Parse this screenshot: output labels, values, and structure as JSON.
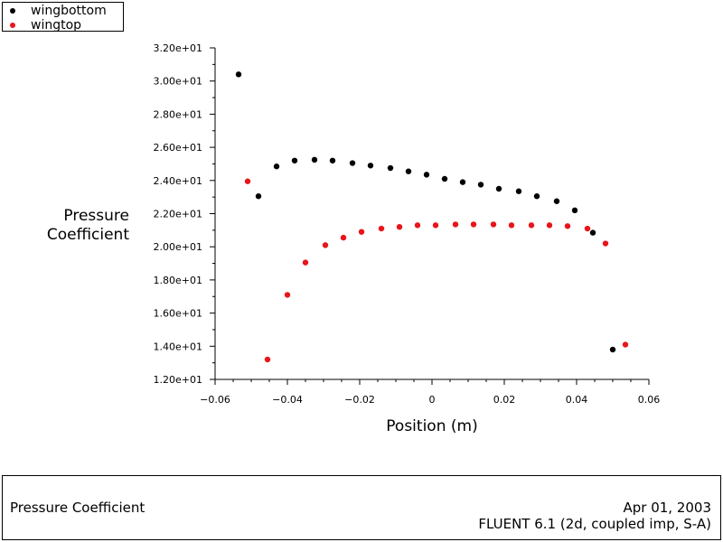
{
  "chart_data": {
    "type": "scatter",
    "xlabel": "Position (m)",
    "ylabel_lines": [
      "Pressure",
      "Coefficient"
    ],
    "xlim": [
      -0.06,
      0.06
    ],
    "ylim": [
      12.0,
      32.0
    ],
    "x_ticks": [
      -0.06,
      -0.04,
      -0.02,
      0,
      0.02,
      0.04,
      0.06
    ],
    "x_tick_labels": [
      "-0.06",
      "-0.04",
      "-0.02",
      "0",
      "0.02",
      "0.04",
      "0.06"
    ],
    "y_ticks": [
      12,
      14,
      16,
      18,
      20,
      22,
      24,
      26,
      28,
      30,
      32
    ],
    "y_tick_labels": [
      "1.20e+01",
      "1.40e+01",
      "1.60e+01",
      "1.80e+01",
      "2.00e+01",
      "2.20e+01",
      "2.40e+01",
      "2.60e+01",
      "2.80e+01",
      "3.00e+01",
      "3.20e+01"
    ],
    "grid": false,
    "legend_position": "top-left",
    "series": [
      {
        "name": "wingbottom",
        "color": "#000000",
        "x": [
          -0.0535,
          -0.048,
          -0.043,
          -0.038,
          -0.0325,
          -0.0275,
          -0.022,
          -0.017,
          -0.0115,
          -0.0065,
          -0.0015,
          0.0035,
          0.0085,
          0.0135,
          0.0185,
          0.024,
          0.029,
          0.0345,
          0.0395,
          0.0445,
          0.05
        ],
        "y": [
          30.4,
          23.05,
          24.85,
          25.2,
          25.25,
          25.2,
          25.05,
          24.9,
          24.75,
          24.55,
          24.35,
          24.1,
          23.9,
          23.75,
          23.5,
          23.35,
          23.05,
          22.75,
          22.2,
          20.85,
          13.8
        ]
      },
      {
        "name": "wingtop",
        "color": "#e8151b",
        "x": [
          -0.051,
          -0.0455,
          -0.04,
          -0.035,
          -0.0295,
          -0.0245,
          -0.0195,
          -0.014,
          -0.009,
          -0.004,
          0.001,
          0.0065,
          0.0115,
          0.017,
          0.022,
          0.0275,
          0.0325,
          0.0375,
          0.043,
          0.048,
          0.0535
        ],
        "y": [
          23.95,
          13.2,
          17.1,
          19.05,
          20.1,
          20.55,
          20.9,
          21.1,
          21.2,
          21.3,
          21.3,
          21.35,
          21.35,
          21.35,
          21.3,
          21.3,
          21.3,
          21.25,
          21.1,
          20.2,
          14.1
        ]
      }
    ]
  },
  "legend": {
    "items": [
      {
        "label": "wingbottom",
        "color": "#000000"
      },
      {
        "label": "wingtop",
        "color": "#e8151b"
      }
    ]
  },
  "footer": {
    "title": "Pressure Coefficient",
    "date": "Apr 01, 2003",
    "version": "FLUENT 6.1 (2d, coupled imp, S-A)"
  }
}
